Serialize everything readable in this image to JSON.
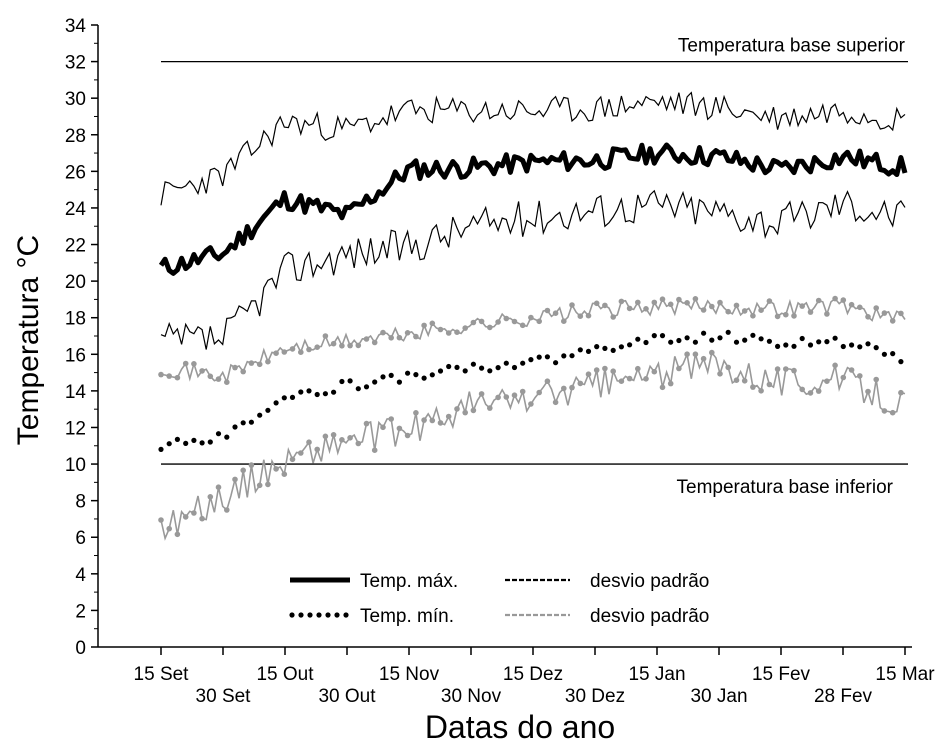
{
  "chart_data": {
    "type": "line",
    "xlabel": "Datas do ano",
    "ylabel": "Temperatura °C",
    "ylim": [
      0,
      34
    ],
    "yticks": [
      0,
      2,
      4,
      6,
      8,
      10,
      12,
      14,
      16,
      18,
      20,
      22,
      24,
      26,
      28,
      30,
      32,
      34
    ],
    "x_tick_labels": [
      "15 Set",
      "30 Set",
      "15 Out",
      "30 Out",
      "15 Nov",
      "30 Nov",
      "15 Dez",
      "30 Dez",
      "15 Jan",
      "30 Jan",
      "15 Fev",
      "28 Fev",
      "15 Mar"
    ],
    "grid": false,
    "reference_lines": [
      {
        "label": "Temperatura base superior",
        "value": 32
      },
      {
        "label": "Temperatura base inferior",
        "value": 10
      }
    ],
    "legend": {
      "position": "bottom-center",
      "entries": [
        {
          "label": "Temp. máx.",
          "style": "thick-solid",
          "color": "#000000"
        },
        {
          "label": "desvio padrão",
          "style": "dashed",
          "color": "#000000"
        },
        {
          "label": "Temp. mín.",
          "style": "dotted",
          "color": "#000000"
        },
        {
          "label": "desvio padrão",
          "style": "dashed",
          "color": "#999999"
        }
      ]
    },
    "series": [
      {
        "key": "tmax",
        "color": "#000000",
        "style": "thick",
        "x": [
          "15 Set",
          "30 Set",
          "15 Out",
          "30 Out",
          "15 Nov",
          "30 Nov",
          "15 Dez",
          "30 Dez",
          "15 Jan",
          "30 Jan",
          "15 Fev",
          "28 Fev",
          "15 Mar"
        ],
        "values": [
          20.7,
          21.5,
          24.5,
          23.6,
          26.1,
          26.2,
          26.5,
          26.6,
          27.0,
          26.8,
          26.1,
          26.8,
          26.2
        ]
      },
      {
        "key": "tmax_upper",
        "color": "#000000",
        "style": "thin",
        "x": [
          "15 Set",
          "30 Set",
          "15 Out",
          "30 Out",
          "15 Nov",
          "30 Nov",
          "15 Dez",
          "30 Dez",
          "15 Jan",
          "30 Jan",
          "15 Fev",
          "28 Fev",
          "15 Mar"
        ],
        "values": [
          24.7,
          25.8,
          28.7,
          28.3,
          29.3,
          29.3,
          29.3,
          29.4,
          29.8,
          29.5,
          28.9,
          29.4,
          28.8
        ]
      },
      {
        "key": "tmax_lower",
        "color": "#000000",
        "style": "thin",
        "x": [
          "15 Set",
          "30 Set",
          "15 Out",
          "30 Out",
          "15 Nov",
          "30 Nov",
          "15 Dez",
          "30 Dez",
          "15 Jan",
          "30 Jan",
          "15 Fev",
          "28 Fev",
          "15 Mar"
        ],
        "values": [
          16.7,
          16.8,
          20.6,
          21.5,
          21.9,
          23.0,
          23.5,
          23.9,
          24.2,
          23.8,
          23.2,
          24.3,
          23.5
        ]
      },
      {
        "key": "tmin",
        "color": "#000000",
        "style": "dots",
        "x": [
          "15 Set",
          "30 Set",
          "15 Out",
          "30 Out",
          "15 Nov",
          "30 Nov",
          "15 Dez",
          "30 Dez",
          "15 Jan",
          "30 Jan",
          "15 Fev",
          "28 Fev",
          "15 Mar"
        ],
        "values": [
          10.9,
          11.6,
          13.6,
          14.3,
          14.8,
          15.2,
          15.6,
          16.2,
          16.8,
          17.0,
          16.6,
          16.7,
          15.8
        ]
      },
      {
        "key": "tmin_upper",
        "color": "#999999",
        "style": "dots-line",
        "x": [
          "15 Set",
          "30 Set",
          "15 Out",
          "30 Out",
          "15 Nov",
          "30 Nov",
          "15 Dez",
          "30 Dez",
          "15 Jan",
          "30 Jan",
          "15 Fev",
          "28 Fev",
          "15 Mar"
        ],
        "values": [
          15.3,
          14.8,
          16.3,
          16.7,
          17.1,
          17.6,
          18.0,
          18.4,
          18.6,
          18.6,
          18.5,
          18.7,
          17.8
        ]
      },
      {
        "key": "tmin_lower",
        "color": "#999999",
        "style": "dots-line",
        "x": [
          "15 Set",
          "30 Set",
          "15 Out",
          "30 Out",
          "15 Nov",
          "30 Nov",
          "15 Dez",
          "30 Dez",
          "15 Jan",
          "30 Jan",
          "15 Fev",
          "28 Fev",
          "15 Mar"
        ],
        "values": [
          6.5,
          8.2,
          10.2,
          11.3,
          11.8,
          13.2,
          13.6,
          14.3,
          14.9,
          15.5,
          14.5,
          14.6,
          13.3
        ]
      }
    ]
  }
}
